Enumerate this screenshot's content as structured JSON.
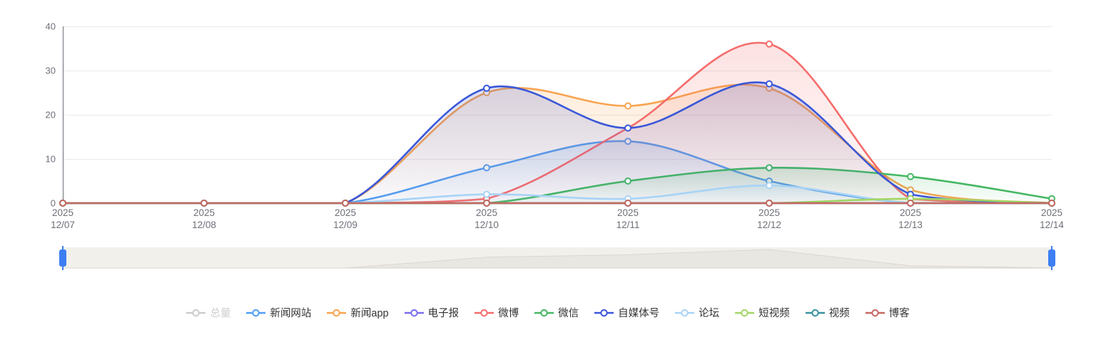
{
  "chart_data": {
    "type": "area",
    "title": "",
    "xlabel": "",
    "ylabel": "",
    "year_label": "2025",
    "categories": [
      "12/07",
      "12/08",
      "12/09",
      "12/10",
      "12/11",
      "12/12",
      "12/13",
      "12/14"
    ],
    "ylim": [
      0,
      40
    ],
    "yticks": [
      0,
      10,
      20,
      30,
      40
    ],
    "grid": true,
    "smooth": true,
    "legend_position": "bottom",
    "series": [
      {
        "name": "总量",
        "color": "#c9c9c9",
        "selected": false,
        "values": null
      },
      {
        "name": "新闻网站",
        "color": "#4f9ef7",
        "selected": true,
        "values": [
          0,
          0,
          0,
          8,
          14,
          5,
          0,
          0
        ]
      },
      {
        "name": "新闻app",
        "color": "#f9a450",
        "selected": true,
        "values": [
          0,
          0,
          0,
          25,
          22,
          26,
          3,
          0
        ]
      },
      {
        "name": "电子报",
        "color": "#7a6cf0",
        "selected": true,
        "values": [
          0,
          0,
          0,
          0,
          0,
          0,
          0,
          0
        ]
      },
      {
        "name": "微博",
        "color": "#f56c6c",
        "selected": true,
        "values": [
          0,
          0,
          0,
          1,
          17,
          36,
          1,
          0
        ]
      },
      {
        "name": "微信",
        "color": "#45b763",
        "selected": true,
        "values": [
          0,
          0,
          0,
          0,
          5,
          8,
          6,
          1
        ]
      },
      {
        "name": "自媒体号",
        "color": "#3a57d8",
        "selected": true,
        "values": [
          0,
          0,
          0,
          26,
          17,
          27,
          2,
          0
        ]
      },
      {
        "name": "论坛",
        "color": "#a8d3f7",
        "selected": true,
        "values": [
          0,
          0,
          0,
          2,
          1,
          4,
          0,
          0
        ]
      },
      {
        "name": "短视频",
        "color": "#a2d665",
        "selected": true,
        "values": [
          0,
          0,
          0,
          0,
          0,
          0,
          1,
          0
        ]
      },
      {
        "name": "视频",
        "color": "#38919f",
        "selected": true,
        "values": [
          0,
          0,
          0,
          0,
          0,
          0,
          0,
          0
        ]
      },
      {
        "name": "博客",
        "color": "#c56860",
        "selected": true,
        "values": [
          0,
          0,
          0,
          0,
          0,
          0,
          0,
          0
        ]
      }
    ]
  },
  "axis_style": {
    "label_color": "#6E7079",
    "grid_color": "#E9E9E9",
    "axis_line_color": "#6E7079"
  },
  "datazoom": {
    "track_color": "#F2F0EB",
    "shadow_fill": "rgba(110,100,80,0.06)",
    "shadow_stroke": "rgba(110,100,80,0.14)",
    "handle_color": "#3D7EF2",
    "window_start": "12/07",
    "window_end": "12/14"
  },
  "disabled_legend_text_color": "#cccccc"
}
